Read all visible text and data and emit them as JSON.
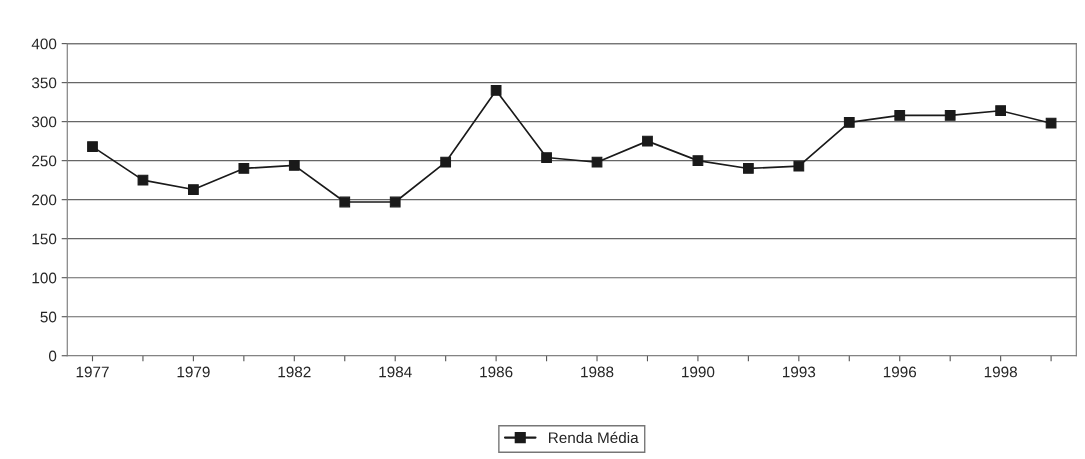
{
  "chart_data": {
    "type": "line",
    "categories": [
      "1977",
      null,
      "1979",
      null,
      "1982",
      null,
      "1984",
      null,
      "1986",
      null,
      "1988",
      null,
      "1990",
      null,
      "1993",
      null,
      "1996",
      null,
      "1998",
      null
    ],
    "series": [
      {
        "name": "Renda Média",
        "color": "#1a1a1a",
        "values": [
          268,
          225,
          213,
          240,
          244,
          197,
          197,
          248,
          340,
          254,
          248,
          275,
          250,
          240,
          243,
          299,
          308,
          308,
          314,
          298
        ]
      }
    ],
    "ylim": [
      0,
      400
    ],
    "yticks": [
      0,
      50,
      100,
      150,
      200,
      250,
      300,
      350,
      400
    ],
    "grid": "y",
    "legend": "bottom",
    "marker": "square",
    "line_style": "solid"
  }
}
